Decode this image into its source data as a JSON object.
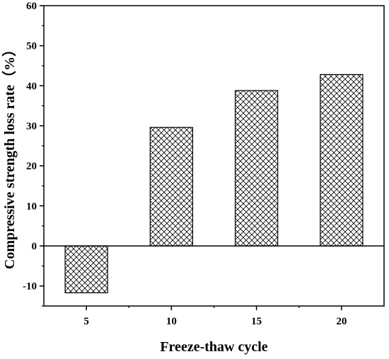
{
  "chart_data": {
    "type": "bar",
    "categories": [
      "5",
      "10",
      "15",
      "20"
    ],
    "values": [
      -11.7,
      29.6,
      38.8,
      42.8
    ],
    "xlabel": "Freeze-thaw cycle",
    "ylabel": "Compressive strength loss rate（%）",
    "ylim": [
      -15,
      60
    ],
    "yticks": [
      -10,
      0,
      10,
      20,
      30,
      40,
      50,
      60
    ],
    "ytick_labels": [
      "-10",
      "0",
      "10",
      "20",
      "30",
      "40",
      "50",
      "60"
    ],
    "grid": false,
    "legend": "none",
    "bar_pattern": "crosshatch",
    "bar_fill": "#ffffff",
    "line_color": "#000000"
  }
}
